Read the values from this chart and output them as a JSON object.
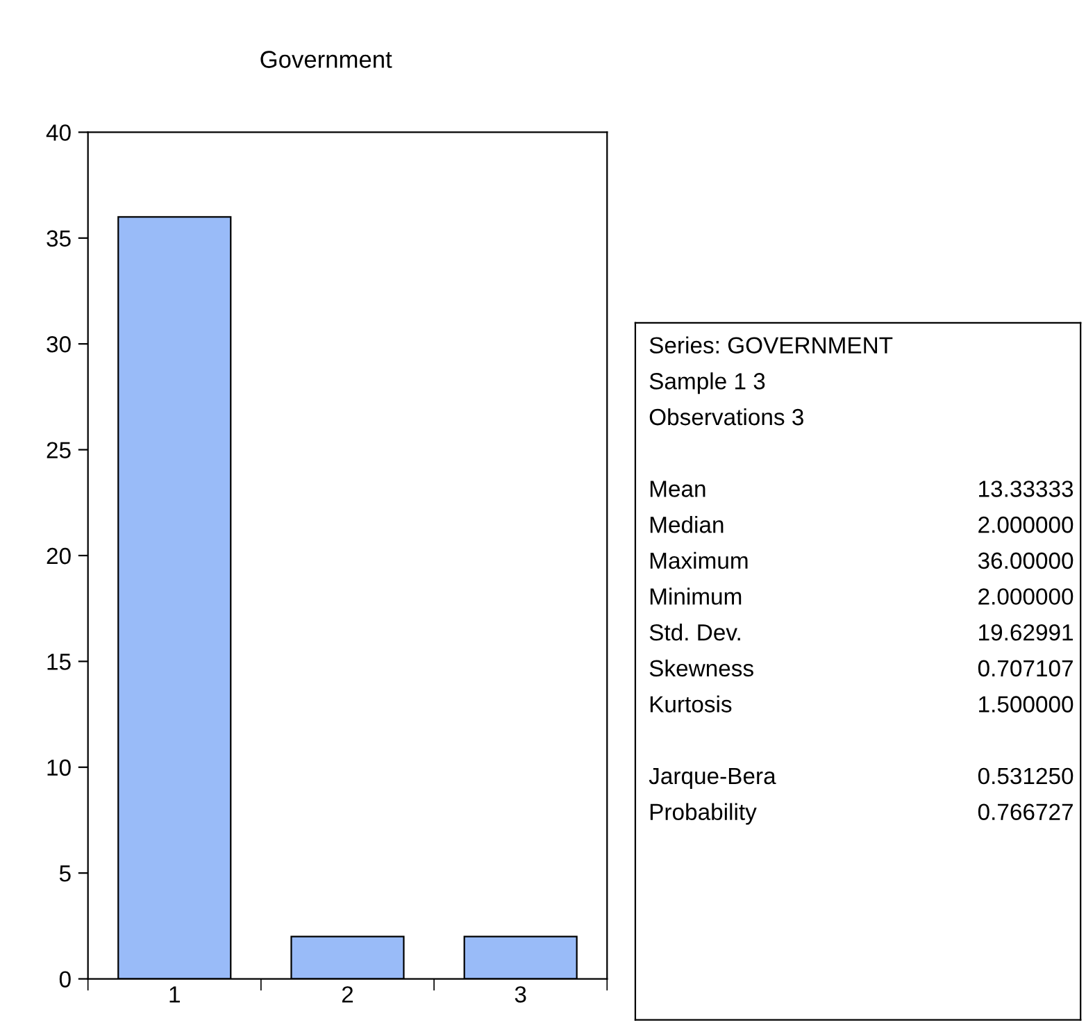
{
  "chart_data": [
    {
      "type": "bar",
      "title": "Government",
      "categories": [
        "1",
        "2",
        "3"
      ],
      "values": [
        36,
        2,
        2
      ],
      "color": "#99bbf8",
      "ylim": [
        0,
        40
      ],
      "yticks": [
        0,
        5,
        10,
        15,
        20,
        25,
        30,
        35,
        40
      ],
      "grid": false,
      "legend": false
    },
    {
      "type": "other",
      "annotations": [
        "Series: GOVERNMENT",
        "Sample 1 3",
        "Observations 3"
      ],
      "categories": [
        "Mean",
        "Median",
        "Maximum",
        "Minimum",
        "Std. Dev.",
        "Skewness",
        "Kurtosis",
        null,
        "Jarque-Bera",
        "Probability"
      ],
      "value_labels": [
        "13.33333",
        "2.000000",
        "36.00000",
        "2.000000",
        "19.62991",
        "0.707107",
        "1.500000",
        null,
        "0.531250",
        "0.766727"
      ]
    }
  ]
}
